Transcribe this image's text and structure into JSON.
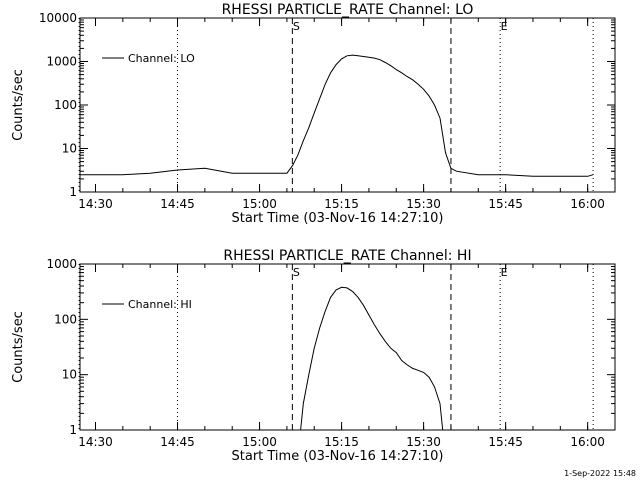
{
  "chart_data": [
    {
      "type": "line",
      "title": "RHESSI PARTICLE_RATE Channel: LO",
      "xlabel": "Start Time (03-Nov-16 14:27:10)",
      "ylabel": "Counts/sec",
      "yscale": "log",
      "ylim": [
        1,
        10000
      ],
      "y_ticks": [
        "1",
        "10",
        "100",
        "1000",
        "10000"
      ],
      "x_ticks": [
        "14:30",
        "14:45",
        "15:00",
        "15:15",
        "15:30",
        "15:45",
        "16:00"
      ],
      "legend": {
        "label": "Channel: LO",
        "placement": "top-left"
      },
      "markers": [
        {
          "label": "",
          "style": "dotted",
          "time": "14:27"
        },
        {
          "label": "",
          "style": "dotted",
          "time": "14:45"
        },
        {
          "label": "S",
          "style": "dashed",
          "time": "15:06"
        },
        {
          "label": "",
          "style": "dashed",
          "time": "15:35"
        },
        {
          "label": "E",
          "style": "dotted",
          "time": "15:44"
        },
        {
          "label": "",
          "style": "dotted",
          "time": "16:01"
        }
      ],
      "series": [
        {
          "name": "Channel: LO",
          "x": [
            "14:27",
            "14:30",
            "14:35",
            "14:40",
            "14:45",
            "14:50",
            "14:55",
            "15:00",
            "15:05",
            "15:06",
            "15:07",
            "15:08",
            "15:09",
            "15:10",
            "15:11",
            "15:12",
            "15:13",
            "15:14",
            "15:15",
            "15:16",
            "15:17",
            "15:18",
            "15:19",
            "15:20",
            "15:21",
            "15:22",
            "15:23",
            "15:24",
            "15:25",
            "15:26",
            "15:27",
            "15:28",
            "15:29",
            "15:30",
            "15:31",
            "15:32",
            "15:33",
            "15:34",
            "15:35",
            "15:36",
            "15:40",
            "15:45",
            "15:50",
            "15:55",
            "16:00",
            "16:01"
          ],
          "y": [
            2.5,
            2.5,
            2.5,
            2.7,
            3.2,
            3.5,
            2.7,
            2.7,
            2.7,
            4,
            7,
            15,
            30,
            65,
            140,
            300,
            550,
            850,
            1150,
            1350,
            1400,
            1350,
            1300,
            1250,
            1200,
            1100,
            950,
            800,
            650,
            550,
            450,
            380,
            300,
            230,
            160,
            100,
            50,
            8,
            3.5,
            3,
            2.5,
            2.5,
            2.3,
            2.3,
            2.3,
            2.5
          ]
        }
      ]
    },
    {
      "type": "line",
      "title": "RHESSI PARTICLE_RATE Channel: HI",
      "xlabel": "Start Time (03-Nov-16 14:27:10)",
      "ylabel": "Counts/sec",
      "yscale": "log",
      "ylim": [
        1,
        1000
      ],
      "y_ticks": [
        "1",
        "10",
        "100",
        "1000"
      ],
      "x_ticks": [
        "14:30",
        "14:45",
        "15:00",
        "15:15",
        "15:30",
        "15:45",
        "16:00"
      ],
      "legend": {
        "label": "Channel: HI",
        "placement": "top-left"
      },
      "markers": [
        {
          "label": "",
          "style": "dotted",
          "time": "14:27"
        },
        {
          "label": "",
          "style": "dotted",
          "time": "14:45"
        },
        {
          "label": "S",
          "style": "dashed",
          "time": "15:06"
        },
        {
          "label": "",
          "style": "dashed",
          "time": "15:35"
        },
        {
          "label": "E",
          "style": "dotted",
          "time": "15:44"
        },
        {
          "label": "",
          "style": "dotted",
          "time": "16:01"
        }
      ],
      "series": [
        {
          "name": "Channel: HI",
          "x": [
            "15:07.5",
            "15:08",
            "15:09",
            "15:10",
            "15:11",
            "15:12",
            "15:13",
            "15:14",
            "15:15",
            "15:16",
            "15:17",
            "15:18",
            "15:19",
            "15:20",
            "15:21",
            "15:22",
            "15:23",
            "15:24",
            "15:25",
            "15:26",
            "15:27",
            "15:28",
            "15:29",
            "15:30",
            "15:31",
            "15:32",
            "15:33",
            "15:33.5"
          ],
          "y": [
            1,
            3,
            10,
            30,
            70,
            140,
            250,
            340,
            380,
            370,
            320,
            250,
            180,
            120,
            80,
            55,
            40,
            30,
            25,
            18,
            15,
            13,
            12,
            11,
            9,
            6,
            3,
            1
          ]
        }
      ]
    }
  ],
  "footer": "1-Sep-2022 15:48"
}
